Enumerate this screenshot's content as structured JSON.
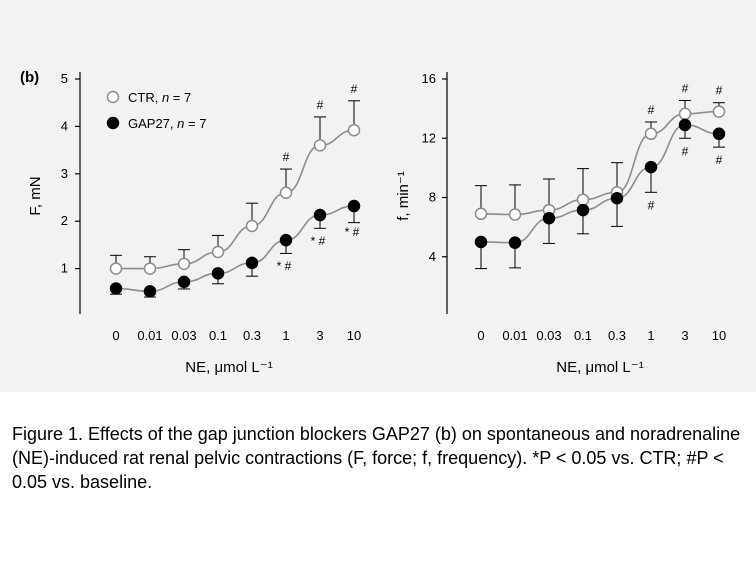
{
  "panel_label": "(b)",
  "caption": "Figure 1. Effects of the gap junction blockers GAP27 (b) on spontaneous and noradrenaline (NE)-induced rat renal pelvic contractions (F, force; f, frequency). *P < 0.05 vs. CTR; #P < 0.05 vs. baseline.",
  "colors": {
    "line": "#8c8c8c",
    "ink": "#000000",
    "open_fill": "#ffffff",
    "filled": "#000000"
  },
  "chart_data": [
    {
      "type": "line",
      "xlabel": "NE, μmol L⁻¹",
      "ylabel": "F, mN",
      "categories": [
        "0",
        "0.01",
        "0.03",
        "0.1",
        "0.3",
        "1",
        "3",
        "10"
      ],
      "ylim": [
        0,
        5
      ],
      "yticks": [
        1,
        2,
        3,
        4,
        5
      ],
      "grid": false,
      "legend_position": "top-left",
      "series": [
        {
          "name": "CTR, n = 7",
          "label": "CTR,",
          "n_label": "n",
          "n_value": "= 7",
          "marker": "open-circle",
          "values": [
            1.0,
            1.0,
            1.1,
            1.35,
            1.9,
            2.6,
            3.6,
            3.92
          ],
          "error": [
            0.28,
            0.25,
            0.3,
            0.35,
            0.48,
            0.5,
            0.6,
            0.62
          ],
          "annotations": [
            "",
            "",
            "",
            "",
            "",
            "#",
            "#",
            "#"
          ]
        },
        {
          "name": "GAP27, n = 7",
          "label": "GAP27,",
          "n_label": "n",
          "n_value": "= 7",
          "marker": "filled-circle",
          "values": [
            0.58,
            0.52,
            0.72,
            0.9,
            1.12,
            1.6,
            2.13,
            2.32
          ],
          "error": [
            0.12,
            0.12,
            0.15,
            0.22,
            0.28,
            0.28,
            0.28,
            0.35
          ],
          "annotations": [
            "",
            "",
            "",
            "",
            "",
            "* #",
            "* #",
            "* #"
          ]
        }
      ]
    },
    {
      "type": "line",
      "xlabel": "NE, μmol L⁻¹",
      "ylabel": "f, min⁻¹",
      "categories": [
        "0",
        "0.01",
        "0.03",
        "0.1",
        "0.3",
        "1",
        "3",
        "10"
      ],
      "ylim": [
        0,
        16
      ],
      "yticks": [
        4,
        8,
        12,
        16
      ],
      "grid": false,
      "series": [
        {
          "name": "CTR",
          "marker": "open-circle",
          "values": [
            6.9,
            6.85,
            7.15,
            7.85,
            8.35,
            12.3,
            13.65,
            13.8
          ],
          "error": [
            1.9,
            2.0,
            2.1,
            2.1,
            2.0,
            0.8,
            0.9,
            0.6
          ],
          "annotations": [
            "",
            "",
            "",
            "",
            "",
            "#",
            "#",
            "#"
          ]
        },
        {
          "name": "GAP27",
          "marker": "filled-circle",
          "values": [
            5.0,
            4.95,
            6.6,
            7.15,
            7.95,
            10.05,
            12.9,
            12.3
          ],
          "error": [
            1.8,
            1.7,
            1.7,
            1.6,
            1.9,
            1.7,
            0.9,
            0.9
          ],
          "annotations": [
            "",
            "",
            "",
            "",
            "",
            "#",
            "#",
            "#"
          ]
        }
      ]
    }
  ]
}
